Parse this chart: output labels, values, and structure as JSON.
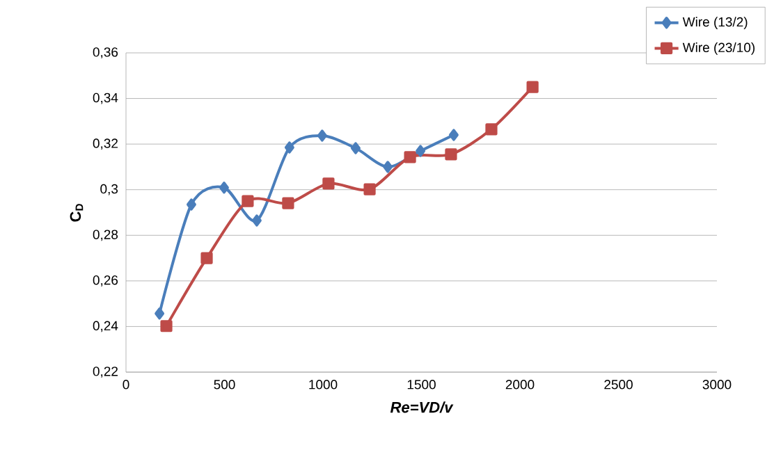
{
  "chart_data": {
    "type": "line",
    "xlabel": "Re=VD/v",
    "ylabel": "C$_{D}$",
    "xlim": [
      0,
      3000
    ],
    "xticks": [
      0,
      500,
      1000,
      1500,
      2000,
      2500,
      3000
    ],
    "ylim": [
      0.22,
      0.36
    ],
    "yticks": [
      {
        "value": 0.22,
        "label": "0,22"
      },
      {
        "value": 0.24,
        "label": "0,24"
      },
      {
        "value": 0.26,
        "label": "0,26"
      },
      {
        "value": 0.28,
        "label": "0,28"
      },
      {
        "value": 0.3,
        "label": "0,3"
      },
      {
        "value": 0.32,
        "label": "0,32"
      },
      {
        "value": 0.34,
        "label": "0,34"
      },
      {
        "value": 0.36,
        "label": "0,36"
      }
    ],
    "grid": "y",
    "legend": "top right",
    "series": [
      {
        "name": "Wire (13/2)",
        "color": "#4a7ebb",
        "marker": "diamond",
        "x": [
          170,
          332,
          498,
          664,
          830,
          996,
          1166,
          1329,
          1495,
          1664
        ],
        "values": [
          0.2457,
          0.2935,
          0.3009,
          0.2865,
          0.3185,
          0.3237,
          0.3182,
          0.31,
          0.317,
          0.324
        ]
      },
      {
        "name": "Wire (23/10)",
        "color": "#be4b48",
        "marker": "square",
        "x": [
          205,
          410,
          618,
          823,
          1028,
          1237,
          1442,
          1650,
          1855,
          2064
        ],
        "values": [
          0.2402,
          0.27,
          0.295,
          0.2941,
          0.3027,
          0.3002,
          0.3143,
          0.3155,
          0.3265,
          0.345
        ]
      }
    ]
  }
}
